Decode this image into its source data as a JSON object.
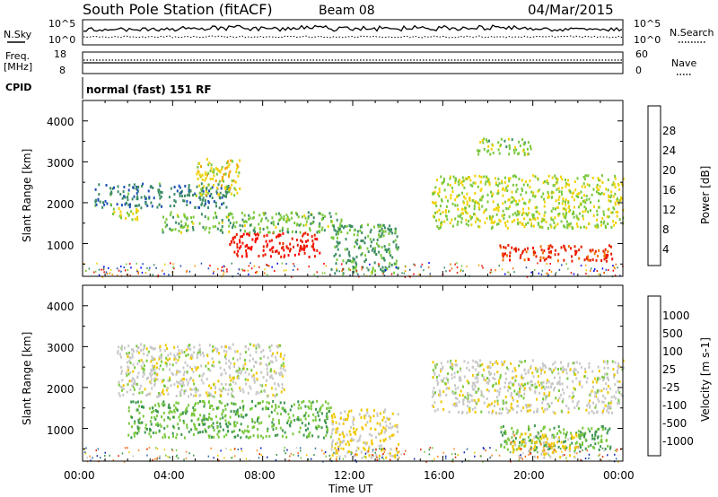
{
  "header": {
    "title": "South Pole Station (fitACF)",
    "beam": "Beam 08",
    "date": "04/Mar/2015"
  },
  "top_panels": {
    "nsky_label": "N.Sky",
    "nsearch_label": "N.Search",
    "nsky_ticks": [
      "10^5",
      "10^0"
    ],
    "nsearch_ticks": [
      "10^5",
      "10^0"
    ],
    "freq_label_line1": "Freq.",
    "freq_label_line2": "[MHz]",
    "freq_ticks": [
      "18",
      "8"
    ],
    "nave_label": "Nave",
    "nave_ticks": [
      "60",
      "0"
    ],
    "cpid_label": "CPID",
    "cpid_text": "normal (fast) 151 RF"
  },
  "axes": {
    "ylabel": "Slant Range [km]",
    "yticks": [
      "4000",
      "3000",
      "2000",
      "1000"
    ],
    "xlabel": "Time UT",
    "xticks": [
      "00:00",
      "04:00",
      "08:00",
      "12:00",
      "16:00",
      "20:00",
      "00:00"
    ]
  },
  "colorbars": {
    "power": {
      "label": "Power [dB]",
      "ticks": [
        "28",
        "24",
        "20",
        "16",
        "12",
        "8",
        "4"
      ],
      "colors": [
        "#0000ff",
        "#1e50b4",
        "#3c8c64",
        "#78c83c",
        "#f0d200",
        "#f5a500",
        "#f06e00",
        "#e61e00",
        "#ff0000"
      ]
    },
    "velocity": {
      "label": "Velocity [m s-1]",
      "ticks": [
        "1000",
        "500",
        "100",
        "25",
        "-25",
        "-100",
        "-500",
        "-1000"
      ],
      "colors": [
        "#1428b4",
        "#2d6ea0",
        "#3c9650",
        "#78c83c",
        "#c8c8c8",
        "#f0c800",
        "#f58c28",
        "#f06414",
        "#e62800"
      ]
    }
  },
  "chart_data": [
    {
      "type": "heatmap",
      "name": "Power",
      "x": [
        "00:00",
        "04:00",
        "08:00",
        "12:00",
        "16:00",
        "20:00",
        "00:00"
      ],
      "ylabel": "Slant Range [km]",
      "xlabel": "",
      "ylim": [
        200,
        4500
      ],
      "colorbar_label": "Power [dB]",
      "colorbar_range": [
        0,
        32
      ],
      "regions": [
        {
          "t0": 0.5,
          "t1": 6.5,
          "r0": 1900,
          "r1": 2500,
          "value": 8
        },
        {
          "t0": 1.2,
          "t1": 2.5,
          "r0": 1600,
          "r1": 1900,
          "value": 14
        },
        {
          "t0": 5.0,
          "t1": 7.0,
          "r0": 2200,
          "r1": 3100,
          "value": 16
        },
        {
          "t0": 6.5,
          "t1": 10.5,
          "r0": 700,
          "r1": 1300,
          "value": 28
        },
        {
          "t0": 3.5,
          "t1": 11.5,
          "r0": 1300,
          "r1": 1800,
          "value": 12
        },
        {
          "t0": 11.0,
          "t1": 14.0,
          "r0": 300,
          "r1": 1500,
          "value": 10
        },
        {
          "t0": 15.5,
          "t1": 24.0,
          "r0": 1400,
          "r1": 2700,
          "value": 14
        },
        {
          "t0": 18.5,
          "t1": 23.5,
          "r0": 600,
          "r1": 1000,
          "value": 26
        },
        {
          "t0": 17.5,
          "t1": 20.0,
          "r0": 3200,
          "r1": 3600,
          "value": 12
        }
      ]
    },
    {
      "type": "heatmap",
      "name": "Velocity",
      "x": [
        "00:00",
        "04:00",
        "08:00",
        "12:00",
        "16:00",
        "20:00",
        "00:00"
      ],
      "ylabel": "Slant Range [km]",
      "xlabel": "Time UT",
      "ylim": [
        200,
        4500
      ],
      "colorbar_label": "Velocity [m s-1]",
      "colorbar_range": [
        -1000,
        1000
      ],
      "regions": [
        {
          "t0": 1.5,
          "t1": 9.0,
          "r0": 1800,
          "r1": 3100,
          "value": 0
        },
        {
          "t0": 2.0,
          "t1": 11.0,
          "r0": 800,
          "r1": 1700,
          "value": -300
        },
        {
          "t0": 11.0,
          "t1": 14.0,
          "r0": 300,
          "r1": 1500,
          "value": 100
        },
        {
          "t0": 15.5,
          "t1": 24.0,
          "r0": 1400,
          "r1": 2700,
          "value": 0
        },
        {
          "t0": 18.5,
          "t1": 23.5,
          "r0": 500,
          "r1": 1100,
          "value": -300
        },
        {
          "t0": 19.0,
          "t1": 22.0,
          "r0": 300,
          "r1": 900,
          "value": 200
        }
      ]
    }
  ]
}
